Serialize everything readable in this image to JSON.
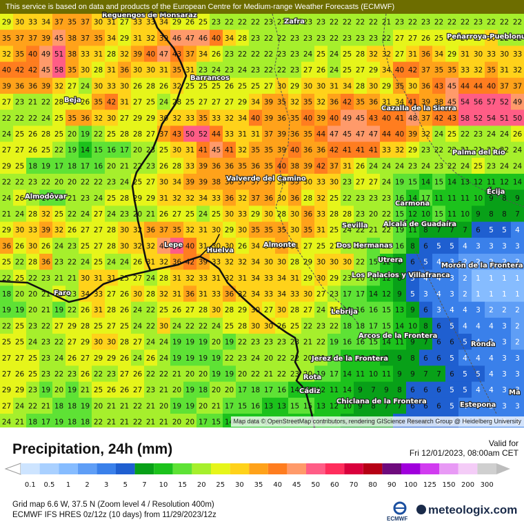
{
  "header": {
    "notice": "This service is based on data and products of the European Centre for Medium-range Weather Forecasts (ECMWF)"
  },
  "map": {
    "attribution": "Map data © OpenStreetMap contributors, rendering GIScience Research Group @ Heidelberg University",
    "grid_values": [
      [
        29,
        30,
        33,
        34,
        37,
        35,
        37,
        30,
        31,
        27,
        33,
        33,
        34,
        29,
        26,
        25,
        23,
        22,
        22,
        22,
        23,
        23,
        22,
        23,
        23,
        22,
        22,
        22,
        22,
        21,
        23,
        22,
        23,
        22,
        22,
        22,
        23,
        22,
        22,
        22
      ],
      [
        35,
        37,
        37,
        39,
        45,
        38,
        37,
        35,
        34,
        29,
        31,
        32,
        39,
        46,
        47,
        46,
        40,
        34,
        28,
        23,
        22,
        22,
        23,
        23,
        23,
        22,
        23,
        23,
        23,
        22,
        27,
        27,
        26,
        25,
        25,
        27,
        27,
        30,
        22,
        22
      ],
      [
        32,
        35,
        40,
        49,
        51,
        38,
        33,
        31,
        28,
        32,
        39,
        40,
        47,
        43,
        37,
        34,
        26,
        23,
        22,
        22,
        22,
        23,
        23,
        24,
        25,
        24,
        25,
        28,
        32,
        32,
        27,
        31,
        36,
        34,
        29,
        31,
        30,
        33,
        30,
        33
      ],
      [
        40,
        42,
        42,
        45,
        58,
        35,
        30,
        28,
        31,
        36,
        30,
        30,
        31,
        35,
        31,
        23,
        24,
        23,
        24,
        23,
        22,
        22,
        23,
        27,
        26,
        24,
        25,
        27,
        29,
        34,
        40,
        42,
        37,
        35,
        35,
        33,
        32,
        35,
        31,
        32
      ],
      [
        39,
        36,
        36,
        39,
        32,
        27,
        24,
        30,
        33,
        30,
        26,
        28,
        26,
        32,
        25,
        25,
        25,
        26,
        25,
        25,
        27,
        30,
        29,
        30,
        30,
        31,
        34,
        28,
        30,
        29,
        35,
        30,
        36,
        43,
        45,
        44,
        44,
        40,
        37,
        37
      ],
      [
        27,
        23,
        21,
        22,
        28,
        26,
        26,
        35,
        42,
        31,
        27,
        25,
        24,
        28,
        25,
        27,
        27,
        27,
        29,
        34,
        39,
        35,
        32,
        35,
        32,
        36,
        42,
        35,
        36,
        31,
        34,
        41,
        39,
        38,
        45,
        54,
        56,
        57,
        52,
        49
      ],
      [
        22,
        22,
        22,
        24,
        25,
        35,
        36,
        32,
        30,
        27,
        29,
        29,
        30,
        32,
        33,
        35,
        33,
        32,
        34,
        40,
        39,
        36,
        35,
        40,
        39,
        40,
        49,
        45,
        43,
        40,
        41,
        48,
        37,
        42,
        43,
        58,
        52,
        54,
        51,
        50
      ],
      [
        24,
        25,
        26,
        28,
        25,
        20,
        19,
        22,
        25,
        28,
        28,
        27,
        37,
        43,
        50,
        52,
        44,
        33,
        31,
        31,
        37,
        39,
        36,
        35,
        44,
        47,
        45,
        47,
        47,
        44,
        40,
        39,
        32,
        24,
        25,
        22,
        23,
        24,
        24,
        26
      ],
      [
        27,
        27,
        26,
        25,
        22,
        19,
        14,
        15,
        16,
        17,
        20,
        23,
        25,
        30,
        31,
        41,
        45,
        41,
        32,
        35,
        35,
        39,
        40,
        36,
        36,
        42,
        41,
        41,
        41,
        33,
        32,
        29,
        23,
        22,
        22,
        21,
        21,
        23,
        22,
        24
      ],
      [
        29,
        25,
        18,
        19,
        17,
        18,
        17,
        16,
        20,
        21,
        22,
        23,
        26,
        28,
        33,
        39,
        36,
        36,
        35,
        36,
        35,
        40,
        38,
        39,
        42,
        37,
        31,
        26,
        24,
        24,
        24,
        23,
        24,
        23,
        22,
        24,
        25,
        23,
        24,
        24
      ],
      [
        22,
        22,
        23,
        22,
        20,
        20,
        22,
        22,
        23,
        24,
        25,
        27,
        30,
        34,
        39,
        39,
        38,
        36,
        37,
        37,
        37,
        34,
        35,
        30,
        33,
        30,
        23,
        27,
        27,
        24,
        19,
        15,
        14,
        15,
        14,
        13,
        12,
        11,
        12,
        14
      ],
      [
        24,
        26,
        24,
        17,
        15,
        21,
        23,
        24,
        25,
        28,
        29,
        29,
        31,
        32,
        32,
        34,
        33,
        36,
        32,
        37,
        36,
        30,
        36,
        28,
        32,
        25,
        22,
        23,
        23,
        23,
        16,
        14,
        17,
        11,
        11,
        11,
        10,
        9,
        8,
        9
      ],
      [
        21,
        24,
        28,
        32,
        25,
        22,
        24,
        27,
        24,
        23,
        20,
        21,
        26,
        27,
        25,
        24,
        25,
        30,
        33,
        29,
        30,
        28,
        30,
        36,
        33,
        28,
        28,
        23,
        20,
        22,
        15,
        12,
        10,
        15,
        11,
        10,
        9,
        8,
        8,
        7
      ],
      [
        29,
        30,
        33,
        39,
        32,
        26,
        27,
        27,
        28,
        30,
        32,
        36,
        37,
        35,
        32,
        31,
        30,
        29,
        30,
        35,
        35,
        35,
        30,
        35,
        31,
        25,
        24,
        22,
        21,
        22,
        19,
        11,
        8,
        7,
        7,
        7,
        6,
        5,
        5,
        4
      ],
      [
        36,
        26,
        30,
        26,
        24,
        23,
        25,
        27,
        28,
        30,
        32,
        32,
        46,
        51,
        40,
        31,
        30,
        30,
        26,
        34,
        34,
        36,
        31,
        27,
        25,
        27,
        22,
        22,
        17,
        22,
        16,
        8,
        6,
        5,
        5,
        4,
        3,
        3,
        3,
        3
      ],
      [
        25,
        22,
        28,
        36,
        23,
        22,
        24,
        25,
        24,
        24,
        26,
        31,
        32,
        36,
        42,
        39,
        33,
        32,
        32,
        34,
        30,
        30,
        28,
        29,
        30,
        30,
        30,
        22,
        15,
        12,
        8,
        6,
        5,
        4,
        3,
        2,
        2,
        2,
        2,
        2
      ],
      [
        22,
        25,
        22,
        23,
        21,
        21,
        30,
        31,
        31,
        25,
        27,
        24,
        28,
        31,
        32,
        33,
        31,
        32,
        31,
        34,
        33,
        34,
        31,
        29,
        30,
        29,
        23,
        20,
        16,
        12,
        8,
        5,
        4,
        4,
        3,
        2,
        1,
        1,
        1,
        1
      ],
      [
        18,
        20,
        20,
        21,
        25,
        23,
        34,
        33,
        27,
        26,
        30,
        28,
        32,
        31,
        36,
        31,
        33,
        36,
        32,
        34,
        33,
        34,
        33,
        30,
        27,
        23,
        17,
        17,
        14,
        12,
        9,
        5,
        3,
        4,
        3,
        2,
        1,
        1,
        1,
        1
      ],
      [
        19,
        19,
        20,
        21,
        19,
        22,
        26,
        31,
        28,
        26,
        24,
        22,
        25,
        26,
        27,
        28,
        30,
        28,
        29,
        30,
        27,
        30,
        28,
        27,
        24,
        25,
        19,
        16,
        16,
        15,
        13,
        9,
        6,
        3,
        4,
        4,
        3,
        2,
        2,
        2
      ],
      [
        22,
        25,
        23,
        22,
        27,
        29,
        28,
        25,
        27,
        25,
        24,
        22,
        30,
        24,
        22,
        22,
        24,
        25,
        28,
        30,
        30,
        26,
        25,
        22,
        23,
        22,
        18,
        18,
        17,
        15,
        14,
        10,
        8,
        6,
        5,
        4,
        4,
        4,
        3,
        2
      ],
      [
        25,
        25,
        24,
        23,
        22,
        27,
        29,
        30,
        30,
        28,
        27,
        24,
        24,
        19,
        19,
        19,
        20,
        19,
        22,
        23,
        23,
        23,
        23,
        21,
        22,
        19,
        16,
        16,
        15,
        14,
        11,
        9,
        7,
        6,
        6,
        5,
        4,
        3,
        3,
        2
      ],
      [
        27,
        27,
        25,
        23,
        24,
        26,
        27,
        29,
        29,
        26,
        24,
        26,
        24,
        19,
        19,
        19,
        19,
        22,
        23,
        24,
        20,
        22,
        22,
        20,
        21,
        17,
        14,
        13,
        11,
        9,
        9,
        8,
        6,
        6,
        5,
        4,
        4,
        4,
        3,
        3
      ],
      [
        27,
        26,
        25,
        23,
        22,
        23,
        26,
        22,
        23,
        27,
        26,
        22,
        22,
        21,
        20,
        20,
        19,
        19,
        20,
        22,
        21,
        22,
        23,
        20,
        19,
        17,
        14,
        11,
        10,
        11,
        9,
        9,
        7,
        7,
        6,
        5,
        5,
        4,
        3,
        3
      ],
      [
        29,
        29,
        23,
        19,
        20,
        19,
        21,
        25,
        26,
        26,
        27,
        23,
        21,
        20,
        19,
        18,
        20,
        20,
        17,
        18,
        17,
        16,
        14,
        14,
        12,
        11,
        14,
        9,
        7,
        9,
        8,
        6,
        6,
        6,
        5,
        5,
        4,
        4,
        3,
        3
      ],
      [
        27,
        24,
        22,
        21,
        18,
        18,
        19,
        20,
        21,
        21,
        22,
        21,
        20,
        19,
        19,
        20,
        21,
        17,
        15,
        16,
        13,
        13,
        15,
        15,
        13,
        12,
        10,
        9,
        8,
        7,
        7,
        6,
        6,
        6,
        5,
        4,
        4,
        3,
        3,
        3
      ],
      [
        24,
        21,
        18,
        17,
        19,
        18,
        18,
        22,
        21,
        21,
        22,
        21,
        21,
        20,
        20,
        17,
        15,
        14,
        14,
        14,
        12,
        13,
        13,
        12,
        12,
        11,
        9,
        8,
        7,
        7,
        6,
        6,
        6,
        5,
        5,
        4,
        4,
        3,
        3,
        3
      ]
    ],
    "place_labels": [
      "Reguengos de Monsaraz",
      "Zafra",
      "Peñarroya-Pueblonuevo",
      "Barrancos",
      "Beja",
      "Cazalla de la Sierra",
      "Palma del Río",
      "Valverde del Camino",
      "Almodôvar",
      "Écija",
      "Carmona",
      "Sevilla",
      "Alcalá de Guadaíra",
      "Dos Hermanas",
      "Lepe",
      "Almonte",
      "Huelva",
      "Utrera",
      "Morón de la Frontera",
      "Los Palacios y Villafranca",
      "Faro",
      "Lebrija",
      "Arcos de la Frontera",
      "Ronda",
      "Jerez de la Frontera",
      "Rota",
      "Cádiz",
      "Chiclana de la Frontera",
      "Estepona",
      "Ma"
    ]
  },
  "legend": {
    "title": "Precipitation, 24h (mm)",
    "valid_label": "Valid for",
    "valid_value": "Fri 12/01/2023, 08:00am CET",
    "scale_labels": [
      "0.1",
      "0.5",
      "1",
      "2",
      "3",
      "5",
      "7",
      "10",
      "15",
      "20",
      "25",
      "30",
      "35",
      "40",
      "45",
      "50",
      "60",
      "70",
      "80",
      "90",
      "100",
      "125",
      "150",
      "200",
      "300"
    ],
    "scale_colors": [
      "#cde4ff",
      "#a9d0ff",
      "#86bcff",
      "#5f9ef6",
      "#3a80ea",
      "#1f5fd0",
      "#08a018",
      "#1cc21c",
      "#5ee235",
      "#a6ef2c",
      "#e6f51a",
      "#ffd21a",
      "#ffa21a",
      "#ff7d1f",
      "#ff9a6a",
      "#ff5d86",
      "#ff2d5c",
      "#d9003c",
      "#b60015",
      "#6e0a7c",
      "#a000dc",
      "#d13cf0",
      "#e89af5",
      "#f4ccf7",
      "#cfcfcf"
    ]
  },
  "footer": {
    "line1": "Grid map 6.6 W, 37.5 N (Zoom level 4 / Resolution 400m)",
    "line2": "ECMWF IFS HRES 0z/12z (10 days) from 11/29/2023/12z",
    "ecmwf_label": "ECMWF",
    "brand": "meteologix.com"
  }
}
